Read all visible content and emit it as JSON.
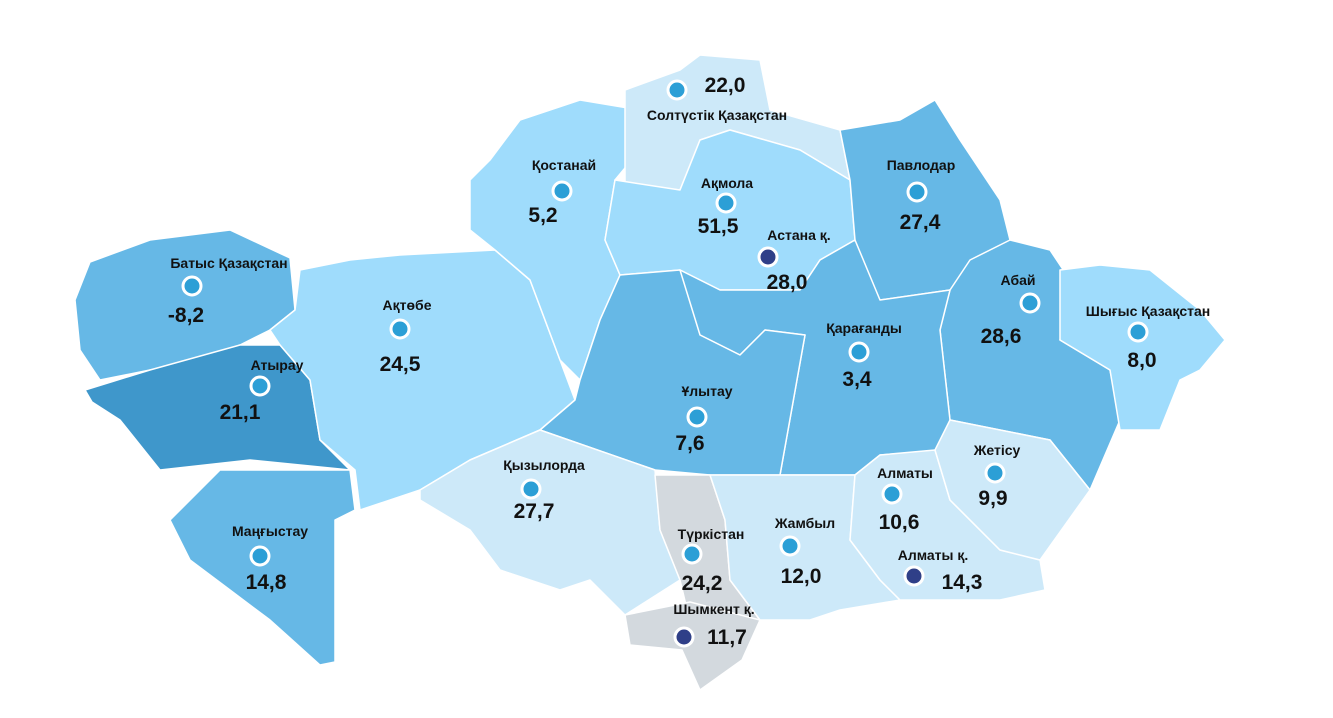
{
  "colors": {
    "very_light": "#cde9f9",
    "light": "#9fdcfc",
    "medium": "#66b8e6",
    "dark": "#3f97cb",
    "grey": "#d3d9de",
    "region_dot": "#2c9fd6",
    "city_dot": "#2f3f88"
  },
  "regions": [
    {
      "name": "Батыс Қазақстан",
      "value": "-8,2",
      "shade": "medium",
      "type": "region"
    },
    {
      "name": "Атырау",
      "value": "21,1",
      "shade": "dark",
      "type": "region"
    },
    {
      "name": "Маңғыстау",
      "value": "14,8",
      "shade": "medium",
      "type": "region"
    },
    {
      "name": "Ақтөбе",
      "value": "24,5",
      "shade": "light",
      "type": "region"
    },
    {
      "name": "Қостанай",
      "value": "5,2",
      "shade": "light",
      "type": "region"
    },
    {
      "name": "Солтүстік Қазақстан",
      "value": "22,0",
      "shade": "very_light",
      "type": "region"
    },
    {
      "name": "Ақмола",
      "value": "51,5",
      "shade": "light",
      "type": "region"
    },
    {
      "name": "Астана қ.",
      "value": "28,0",
      "shade": "light",
      "type": "city"
    },
    {
      "name": "Павлодар",
      "value": "27,4",
      "shade": "medium",
      "type": "region"
    },
    {
      "name": "Абай",
      "value": "28,6",
      "shade": "medium",
      "type": "region"
    },
    {
      "name": "Шығыс Қазақстан",
      "value": "8,0",
      "shade": "light",
      "type": "region"
    },
    {
      "name": "Қарағанды",
      "value": "3,4",
      "shade": "medium",
      "type": "region"
    },
    {
      "name": "Ұлытау",
      "value": "7,6",
      "shade": "medium",
      "type": "region"
    },
    {
      "name": "Қызылорда",
      "value": "27,7",
      "shade": "very_light",
      "type": "region"
    },
    {
      "name": "Түркістан",
      "value": "24,2",
      "shade": "grey",
      "type": "region"
    },
    {
      "name": "Шымкент қ.",
      "value": "11,7",
      "shade": "grey",
      "type": "city"
    },
    {
      "name": "Жамбыл",
      "value": "12,0",
      "shade": "very_light",
      "type": "region"
    },
    {
      "name": "Алматы",
      "value": "10,6",
      "shade": "very_light",
      "type": "region"
    },
    {
      "name": "Алматы қ.",
      "value": "14,3",
      "shade": "very_light",
      "type": "city"
    },
    {
      "name": "Жетісу",
      "value": "9,9",
      "shade": "very_light",
      "type": "region"
    }
  ]
}
